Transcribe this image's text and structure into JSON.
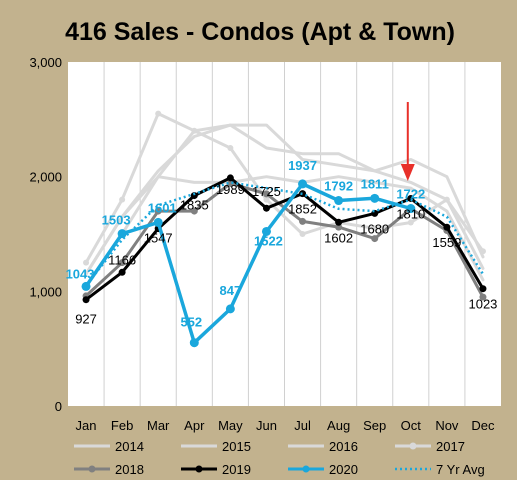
{
  "chart_data": {
    "type": "line",
    "title": "416 Sales - Condos (Apt & Town)",
    "xlabel": "",
    "ylabel": "",
    "categories": [
      "Jan",
      "Feb",
      "Mar",
      "Apr",
      "May",
      "Jun",
      "Jul",
      "Aug",
      "Sep",
      "Oct",
      "Nov",
      "Dec"
    ],
    "ylim": [
      0,
      3000
    ],
    "yticks": [
      0,
      1000,
      2000,
      3000
    ],
    "ytick_labels": [
      "0",
      "1,000",
      "2,000",
      "3,000"
    ],
    "grid": "vertical",
    "legend_position": "bottom",
    "series": [
      {
        "name": "2014",
        "color": "#d9d9d9",
        "marker": "none",
        "style": "solid",
        "values": [
          1040,
          1500,
          2000,
          2400,
          2450,
          2450,
          2150,
          2100,
          2050,
          1950,
          1800,
          1200
        ]
      },
      {
        "name": "2015",
        "color": "#d9d9d9",
        "marker": "none",
        "style": "solid",
        "values": [
          1150,
          1650,
          2000,
          1950,
          1950,
          2000,
          1950,
          2000,
          1950,
          1900,
          1700,
          1100
        ]
      },
      {
        "name": "2016",
        "color": "#d9d9d9",
        "marker": "none",
        "style": "solid",
        "values": [
          1150,
          1650,
          2050,
          2350,
          2450,
          2250,
          2200,
          2200,
          2050,
          2150,
          2000,
          1300
        ]
      },
      {
        "name": "2017",
        "color": "#d9d9d9",
        "marker": "circle",
        "style": "solid",
        "values": [
          1250,
          1800,
          2550,
          2400,
          2250,
          1800,
          1500,
          1600,
          1550,
          1600,
          1800,
          1350
        ]
      },
      {
        "name": "2018",
        "color": "#808080",
        "marker": "circle",
        "style": "solid",
        "values": [
          960,
          1250,
          1700,
          1700,
          1940,
          1850,
          1610,
          1560,
          1460,
          1720,
          1530,
          950
        ]
      },
      {
        "name": "2019",
        "color": "#000000",
        "marker": "circle",
        "style": "solid",
        "values": [
          927,
          1166,
          1547,
          1835,
          1989,
          1725,
          1852,
          1602,
          1680,
          1810,
          1559,
          1023
        ]
      },
      {
        "name": "2020",
        "color": "#1aa7dc",
        "marker": "circle",
        "style": "solid",
        "values": [
          1043,
          1503,
          1601,
          552,
          847,
          1522,
          1937,
          1792,
          1811,
          1722,
          null,
          null
        ]
      },
      {
        "name": "7 Yr Avg",
        "color": "#1aa7dc",
        "marker": "none",
        "style": "dotted",
        "values": [
          1050,
          1450,
          1750,
          1850,
          1950,
          1900,
          1850,
          1720,
          1700,
          1800,
          1650,
          1150
        ]
      }
    ],
    "data_labels": {
      "2019": [
        "927",
        "1166",
        "1547",
        "1835",
        "1989",
        "1725",
        "1852",
        "1602",
        "1680",
        "1810",
        "1559",
        "1023"
      ],
      "2020": [
        "1043",
        "1503",
        "1601",
        "552",
        "847",
        "1522",
        "1937",
        "1792",
        "1811",
        "1722"
      ]
    },
    "annotation": {
      "type": "arrow",
      "month": "Oct",
      "color": "#e8302a"
    }
  }
}
